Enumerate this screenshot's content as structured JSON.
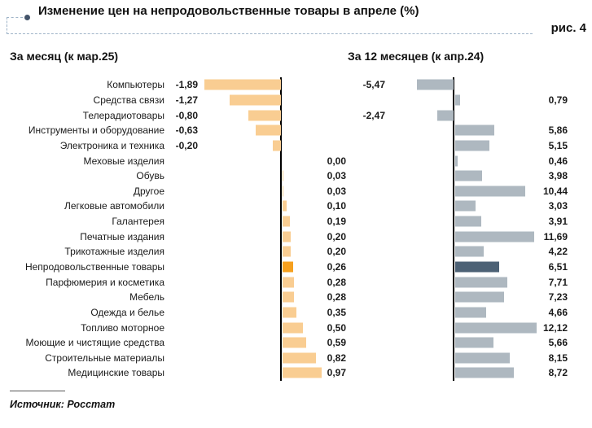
{
  "title": "Изменение цен на непродовольственные товары в апреле (%)",
  "figure_label": "рис. 4",
  "source": "Источник: Росстат",
  "headers": {
    "month": "За месяц (к мар.25)",
    "year": "За 12 месяцев (к апр.24)"
  },
  "colors": {
    "month_bar": "#f9cd92",
    "month_bar_highlight": "#f6a01e",
    "year_bar": "#aeb8c0",
    "year_bar_highlight": "#4c6175",
    "axis": "#000000",
    "dashed_border": "#9fb4c8",
    "bullet": "#44546a"
  },
  "chart_data": {
    "type": "bar",
    "orientation": "horizontal",
    "title": "Изменение цен на непродовольственные товары в апреле (%)",
    "categories": [
      "Компьютеры",
      "Средства связи",
      "Телерадиотовары",
      "Инструменты и оборудование",
      "Электроника и техника",
      "Меховые изделия",
      "Обувь",
      "Другое",
      "Легковые автомобили",
      "Галантерея",
      "Печатные издания",
      "Трикотажные изделия",
      "Непродовольственные товары",
      "Парфюмерия и косметика",
      "Мебель",
      "Одежда и белье",
      "Топливо моторное",
      "Моющие и чистящие средства",
      "Строительные материалы",
      "Медицинские товары"
    ],
    "series": [
      {
        "name": "За месяц (к мар.25)",
        "values": [
          -1.89,
          -1.27,
          -0.8,
          -0.63,
          -0.2,
          0.0,
          0.03,
          0.03,
          0.1,
          0.19,
          0.2,
          0.2,
          0.26,
          0.28,
          0.28,
          0.35,
          0.5,
          0.59,
          0.82,
          0.97
        ]
      },
      {
        "name": "За 12 месяцев (к апр.24)",
        "values": [
          -5.47,
          0.79,
          -2.47,
          5.86,
          5.15,
          0.46,
          3.98,
          10.44,
          3.03,
          3.91,
          11.69,
          4.22,
          6.51,
          7.71,
          7.23,
          4.66,
          12.12,
          5.66,
          8.15,
          8.72
        ]
      }
    ],
    "highlight_category": "Непродовольственные товары",
    "highlight_index": 12,
    "value_label_format": "comma-decimal, 2 digits",
    "grid": false,
    "legend": false
  }
}
